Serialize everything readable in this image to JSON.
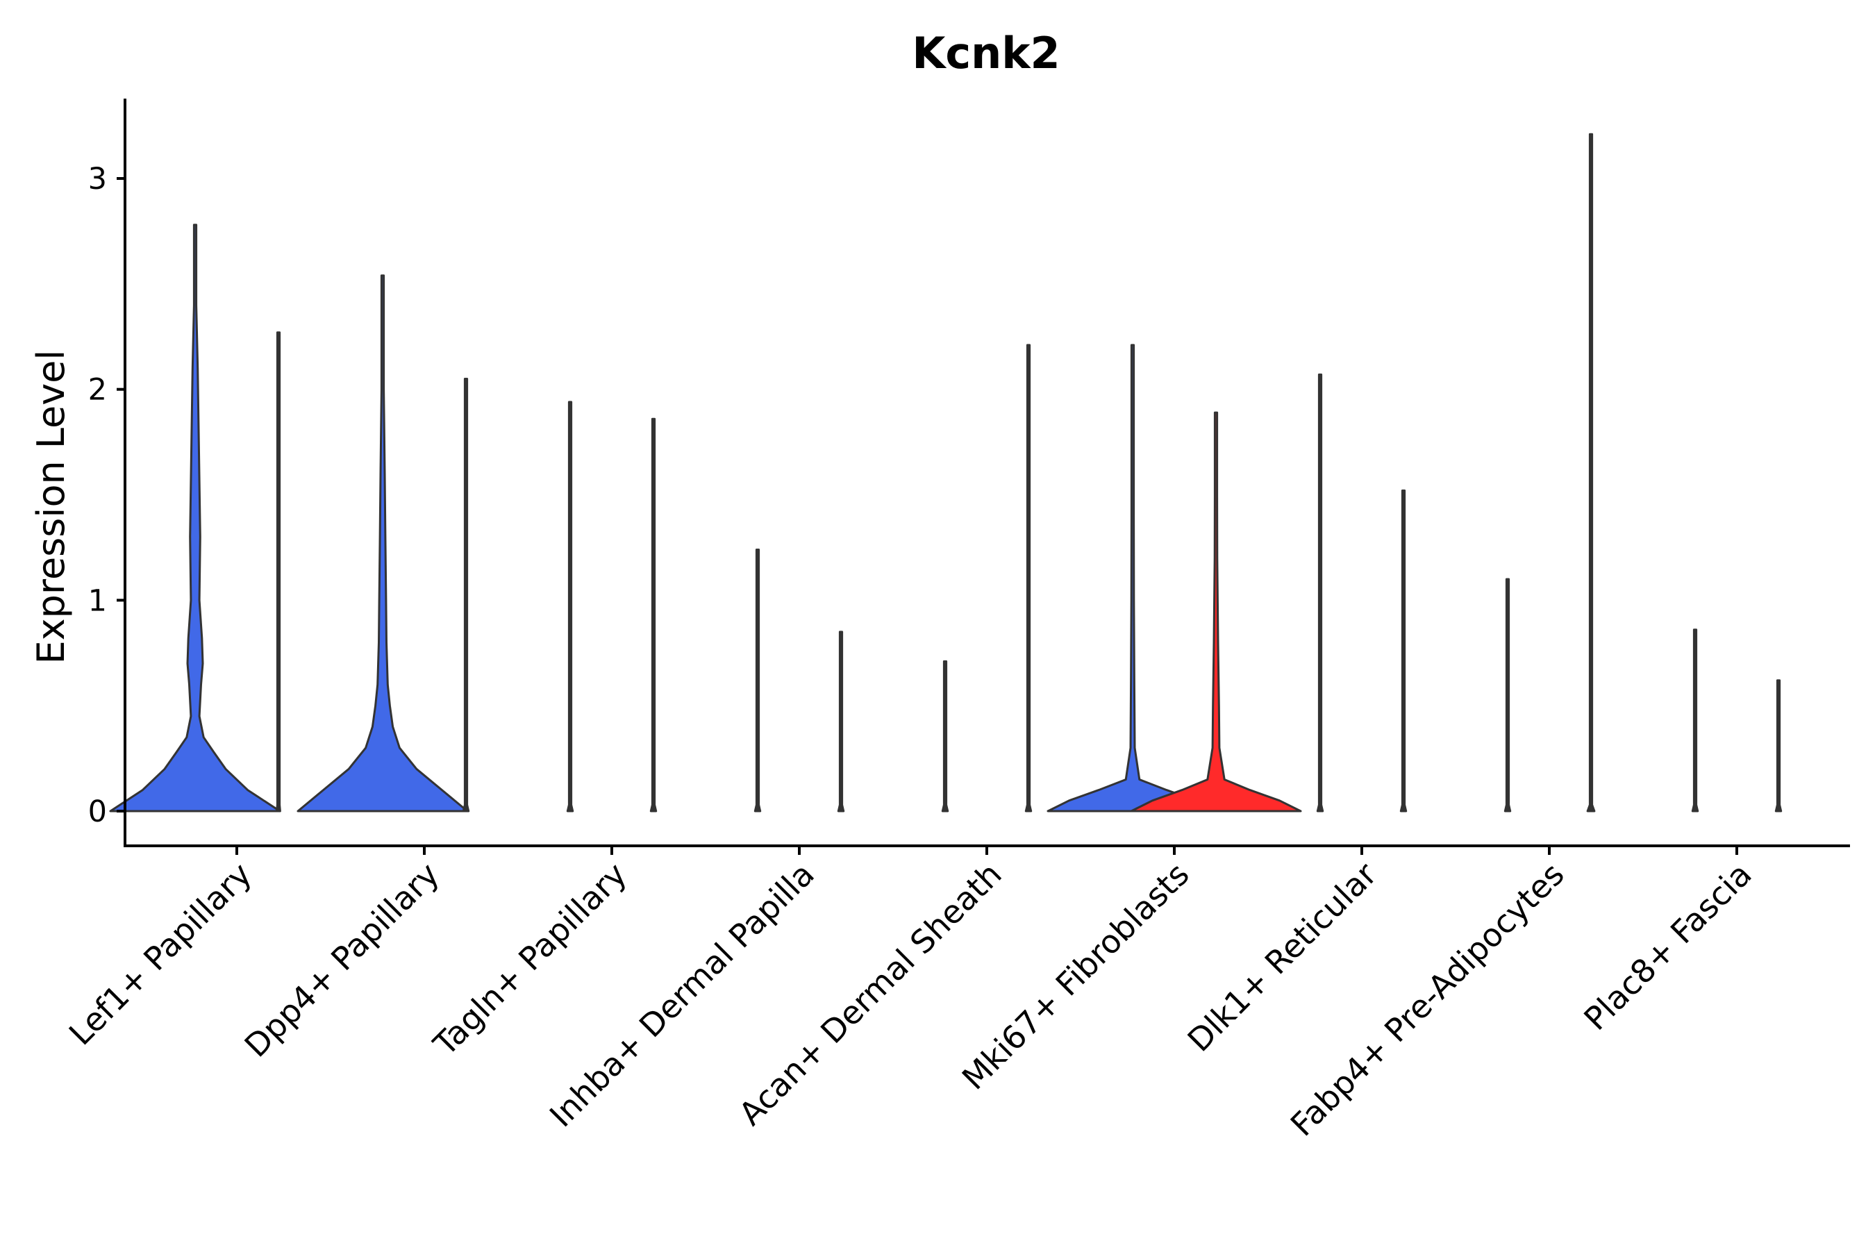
{
  "chart_data": {
    "type": "violin",
    "title": "Kcnk2",
    "xlabel": "",
    "ylabel": "Expression Level",
    "ylim": [
      -0.16,
      3.38
    ],
    "yticks": [
      "0",
      "1",
      "2",
      "3"
    ],
    "categories": [
      "Lef1+ Papillary",
      "Dpp4+ Papillary",
      "Tagln+ Papillary",
      "Inhba+ Dermal Papilla",
      "Acan+ Dermal Sheath",
      "Mki67+ Fibroblasts",
      "Dlk1+ Reticular",
      "Fabp4+ Pre-Adipocytes",
      "Plac8+ Fascia"
    ],
    "groups": [
      "blue",
      "red"
    ],
    "colors": {
      "blue": "#4169E8",
      "red": "#FF2A2A",
      "outline": "#333333"
    },
    "violins": [
      {
        "category": "Lef1+ Papillary",
        "group": "blue",
        "max": 2.78,
        "profile": [
          [
            0,
            1.0
          ],
          [
            0.1,
            0.62
          ],
          [
            0.2,
            0.36
          ],
          [
            0.28,
            0.22
          ],
          [
            0.35,
            0.1
          ],
          [
            0.45,
            0.05
          ],
          [
            0.6,
            0.07
          ],
          [
            0.7,
            0.09
          ],
          [
            0.82,
            0.08
          ],
          [
            1.0,
            0.05
          ],
          [
            1.3,
            0.06
          ],
          [
            1.7,
            0.045
          ],
          [
            2.1,
            0.03
          ],
          [
            2.4,
            0.01
          ],
          [
            2.78,
            0.0
          ]
        ]
      },
      {
        "category": "Lef1+ Papillary",
        "group": "red",
        "max": 2.27,
        "profile": [
          [
            0,
            0.02
          ],
          [
            0.03,
            0.0
          ],
          [
            2.27,
            0.0
          ]
        ]
      },
      {
        "category": "Dpp4+ Papillary",
        "group": "blue",
        "max": 2.54,
        "profile": [
          [
            0,
            1.0
          ],
          [
            0.1,
            0.7
          ],
          [
            0.2,
            0.4
          ],
          [
            0.3,
            0.2
          ],
          [
            0.4,
            0.12
          ],
          [
            0.5,
            0.085
          ],
          [
            0.6,
            0.06
          ],
          [
            0.8,
            0.045
          ],
          [
            1.0,
            0.04
          ],
          [
            1.3,
            0.032
          ],
          [
            1.6,
            0.025
          ],
          [
            2.0,
            0.01
          ],
          [
            2.54,
            0.0
          ]
        ]
      },
      {
        "category": "Dpp4+ Papillary",
        "group": "red",
        "max": 2.05,
        "profile": [
          [
            0,
            0.03
          ],
          [
            0.03,
            0.0
          ],
          [
            2.05,
            0.0
          ]
        ]
      },
      {
        "category": "Tagln+ Papillary",
        "group": "blue",
        "max": 1.94,
        "profile": [
          [
            0,
            0.03
          ],
          [
            0.03,
            0.0
          ],
          [
            1.94,
            0.0
          ]
        ]
      },
      {
        "category": "Tagln+ Papillary",
        "group": "red",
        "max": 1.86,
        "profile": [
          [
            0,
            0.03
          ],
          [
            0.03,
            0.0
          ],
          [
            1.86,
            0.0
          ]
        ]
      },
      {
        "category": "Inhba+ Dermal Papilla",
        "group": "blue",
        "max": 1.24,
        "profile": [
          [
            0,
            0.03
          ],
          [
            0.03,
            0.0
          ],
          [
            1.24,
            0.0
          ]
        ]
      },
      {
        "category": "Inhba+ Dermal Papilla",
        "group": "red",
        "max": 0.85,
        "profile": [
          [
            0,
            0.03
          ],
          [
            0.03,
            0.0
          ],
          [
            0.85,
            0.0
          ]
        ]
      },
      {
        "category": "Acan+ Dermal Sheath",
        "group": "blue",
        "max": 0.71,
        "profile": [
          [
            0,
            0.03
          ],
          [
            0.03,
            0.0
          ],
          [
            0.71,
            0.0
          ]
        ]
      },
      {
        "category": "Acan+ Dermal Sheath",
        "group": "red",
        "max": 2.21,
        "profile": [
          [
            0,
            0.03
          ],
          [
            0.03,
            0.0
          ],
          [
            2.21,
            0.0
          ]
        ]
      },
      {
        "category": "Mki67+ Fibroblasts",
        "group": "blue",
        "max": 2.21,
        "profile": [
          [
            0,
            1.0
          ],
          [
            0.05,
            0.75
          ],
          [
            0.1,
            0.4
          ],
          [
            0.15,
            0.08
          ],
          [
            0.3,
            0.025
          ],
          [
            0.6,
            0.02
          ],
          [
            1.0,
            0.015
          ],
          [
            1.4,
            0.012
          ],
          [
            1.8,
            0.005
          ],
          [
            2.21,
            0.0
          ]
        ]
      },
      {
        "category": "Mki67+ Fibroblasts",
        "group": "red",
        "max": 1.89,
        "profile": [
          [
            0,
            1.0
          ],
          [
            0.05,
            0.75
          ],
          [
            0.1,
            0.4
          ],
          [
            0.15,
            0.1
          ],
          [
            0.3,
            0.04
          ],
          [
            0.5,
            0.035
          ],
          [
            0.8,
            0.025
          ],
          [
            1.2,
            0.015
          ],
          [
            1.5,
            0.008
          ],
          [
            1.89,
            0.0
          ]
        ]
      },
      {
        "category": "Dlk1+ Reticular",
        "group": "blue",
        "max": 2.07,
        "profile": [
          [
            0,
            0.03
          ],
          [
            0.03,
            0.0
          ],
          [
            2.07,
            0.0
          ]
        ]
      },
      {
        "category": "Dlk1+ Reticular",
        "group": "red",
        "max": 1.52,
        "profile": [
          [
            0,
            0.03
          ],
          [
            0.03,
            0.0
          ],
          [
            1.52,
            0.0
          ]
        ]
      },
      {
        "category": "Fabp4+ Pre-Adipocytes",
        "group": "blue",
        "max": 1.1,
        "profile": [
          [
            0,
            0.03
          ],
          [
            0.03,
            0.0
          ],
          [
            1.1,
            0.0
          ]
        ]
      },
      {
        "category": "Fabp4+ Pre-Adipocytes",
        "group": "red",
        "max": 3.21,
        "profile": [
          [
            0,
            0.04
          ],
          [
            0.03,
            0.0
          ],
          [
            3.21,
            0.0
          ]
        ]
      },
      {
        "category": "Plac8+ Fascia",
        "group": "blue",
        "max": 0.86,
        "profile": [
          [
            0,
            0.03
          ],
          [
            0.03,
            0.0
          ],
          [
            0.86,
            0.0
          ]
        ]
      },
      {
        "category": "Plac8+ Fascia",
        "group": "red",
        "max": 0.62,
        "profile": [
          [
            0,
            0.03
          ],
          [
            0.03,
            0.0
          ],
          [
            0.62,
            0.0
          ]
        ]
      }
    ]
  }
}
